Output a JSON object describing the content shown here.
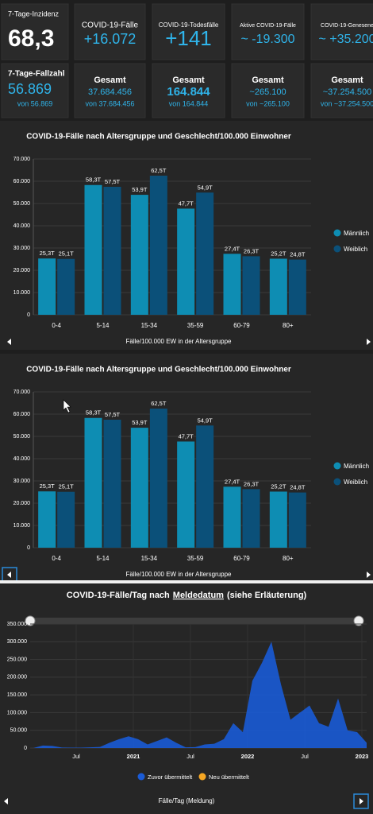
{
  "tiles": [
    {
      "top": {
        "label": "7-Tage-Inzidenz",
        "value": "68,3"
      },
      "bottom": {
        "label": "7-Tage-Fallzahl",
        "value": "56.869",
        "sub": "von 56.869"
      }
    },
    {
      "top": {
        "label": "COVID-19-Fälle",
        "value": "+16.072"
      },
      "bottom": {
        "label": "Gesamt",
        "value": "37.684.456",
        "sub": "von 37.684.456"
      }
    },
    {
      "top": {
        "label": "COVID-19-Todesfälle",
        "value": "+141"
      },
      "bottom": {
        "label": "Gesamt",
        "value": "164.844",
        "sub": "von 164.844"
      }
    },
    {
      "top": {
        "label": "Aktive COVID-19-Fälle",
        "value": "~ -19.300"
      },
      "bottom": {
        "label": "Gesamt",
        "value": "~265.100",
        "sub": "von ~265.100"
      }
    },
    {
      "top": {
        "label": "COVID-19-Genesene",
        "value": "~ +35.200"
      },
      "bottom": {
        "label": "Gesamt",
        "value": "~37.254.500",
        "sub": "von ~37.254.500"
      }
    }
  ],
  "charts": [
    {
      "type": "bar",
      "title": "COVID-19-Fälle nach Altersgruppe und Geschlecht/100.000 Einwohner",
      "x_label": "Fälle/100.000 EW in der Altersgruppe",
      "categories": [
        "0-4",
        "5-14",
        "15-34",
        "35-59",
        "60-79",
        "80+"
      ],
      "series": [
        {
          "name": "Männlich",
          "color": "#0e8db3",
          "values": [
            25300,
            58300,
            53900,
            47700,
            27400,
            25200
          ],
          "value_labels": [
            "25,3T",
            "58,3T",
            "53,9T",
            "47,7T",
            "27,4T",
            "25,2T"
          ]
        },
        {
          "name": "Weiblich",
          "color": "#0b5079",
          "values": [
            25100,
            57500,
            62500,
            54900,
            26300,
            24800
          ],
          "value_labels": [
            "25,1T",
            "57,5T",
            "62,5T",
            "54,9T",
            "26,3T",
            "24,8T"
          ]
        }
      ],
      "ylim": [
        0,
        70000
      ],
      "yticks": [
        0,
        {
          "value": 10000,
          "label": "10.000"
        },
        {
          "value": 20000,
          "label": "20.000"
        },
        {
          "value": 30000,
          "label": "30.000"
        },
        {
          "value": 40000,
          "label": "40.000"
        },
        {
          "value": 50000,
          "label": "50.000"
        },
        {
          "value": 60000,
          "label": "60.000"
        },
        {
          "value": 70000,
          "label": "70.000"
        }
      ],
      "grid": true
    },
    {
      "type": "bar",
      "title": "COVID-19-Fälle nach Altersgruppe und Geschlecht/100.000 Einwohner",
      "x_label": "Fälle/100.000 EW in der Altersgruppe",
      "categories": [
        "0-4",
        "5-14",
        "15-34",
        "35-59",
        "60-79",
        "80+"
      ],
      "series": [
        {
          "name": "Männlich",
          "color": "#0e8db3",
          "values": [
            25300,
            58300,
            53900,
            47700,
            27400,
            25200
          ],
          "value_labels": [
            "25,3T",
            "58,3T",
            "53,9T",
            "47,7T",
            "27,4T",
            "25,2T"
          ]
        },
        {
          "name": "Weiblich",
          "color": "#0b5079",
          "values": [
            25100,
            57500,
            62500,
            54900,
            26300,
            24800
          ],
          "value_labels": [
            "25,1T",
            "57,5T",
            "62,5T",
            "54,9T",
            "26,3T",
            "24,8T"
          ]
        }
      ],
      "ylim": [
        0,
        70000
      ],
      "yticks": [
        0,
        {
          "value": 10000,
          "label": "10.000"
        },
        {
          "value": 20000,
          "label": "20.000"
        },
        {
          "value": 30000,
          "label": "30.000"
        },
        {
          "value": 40000,
          "label": "40.000"
        },
        {
          "value": 50000,
          "label": "50.000"
        },
        {
          "value": 60000,
          "label": "60.000"
        },
        {
          "value": 70000,
          "label": "70.000"
        }
      ],
      "grid": true
    },
    {
      "type": "area",
      "title": [
        "COVID-19-Fälle/Tag nach",
        "Meldedatum",
        "(siehe Erläuterung)"
      ],
      "x_label": "Fälle/Tag (Meldung)",
      "x": [
        "2020-02",
        "2020-03",
        "2020-04",
        "2020-05",
        "2020-06",
        "2020-07",
        "2020-08",
        "2020-09",
        "2020-10",
        "2020-11",
        "2020-12",
        "2021-01",
        "2021-02",
        "2021-03",
        "2021-04",
        "2021-05",
        "2021-06",
        "2021-07",
        "2021-08",
        "2021-09",
        "2021-10",
        "2021-11",
        "2021-12",
        "2022-01",
        "2022-02",
        "2022-03",
        "2022-04",
        "2022-05",
        "2022-06",
        "2022-07",
        "2022-08",
        "2022-09",
        "2022-10",
        "2022-11",
        "2022-12",
        "2023-01"
      ],
      "series": [
        {
          "name": "Zuvor übermittelt",
          "color": "#1a5bd6",
          "values": [
            0,
            7000,
            6000,
            1500,
            1000,
            1000,
            2000,
            3000,
            15000,
            25000,
            33000,
            25000,
            10000,
            20000,
            30000,
            15000,
            2000,
            2500,
            10000,
            12000,
            25000,
            70000,
            45000,
            190000,
            240000,
            300000,
            180000,
            80000,
            100000,
            120000,
            70000,
            60000,
            140000,
            50000,
            45000,
            15000
          ]
        },
        {
          "name": "Neu übermittelt",
          "color": "#f5a623",
          "values": []
        }
      ],
      "ylim": [
        0,
        350000
      ],
      "yticks": [
        0,
        {
          "value": 50000,
          "label": "50.000"
        },
        {
          "value": 100000,
          "label": "100.000"
        },
        {
          "value": 150000,
          "label": "150.000"
        },
        {
          "value": 200000,
          "label": "200.000"
        },
        {
          "value": 250000,
          "label": "250.000"
        },
        {
          "value": 300000,
          "label": "300.000"
        },
        {
          "value": 350000,
          "label": "350.000"
        }
      ],
      "xticks": [
        {
          "value": "2020-07",
          "label": "Jul"
        },
        {
          "value": "2021-01",
          "label": "2021"
        },
        {
          "value": "2021-07",
          "label": "Jul"
        },
        {
          "value": "2022-01",
          "label": "2022"
        },
        {
          "value": "2022-07",
          "label": "Jul"
        },
        {
          "value": "2023-01",
          "label": "2023"
        }
      ],
      "grid": true
    }
  ]
}
